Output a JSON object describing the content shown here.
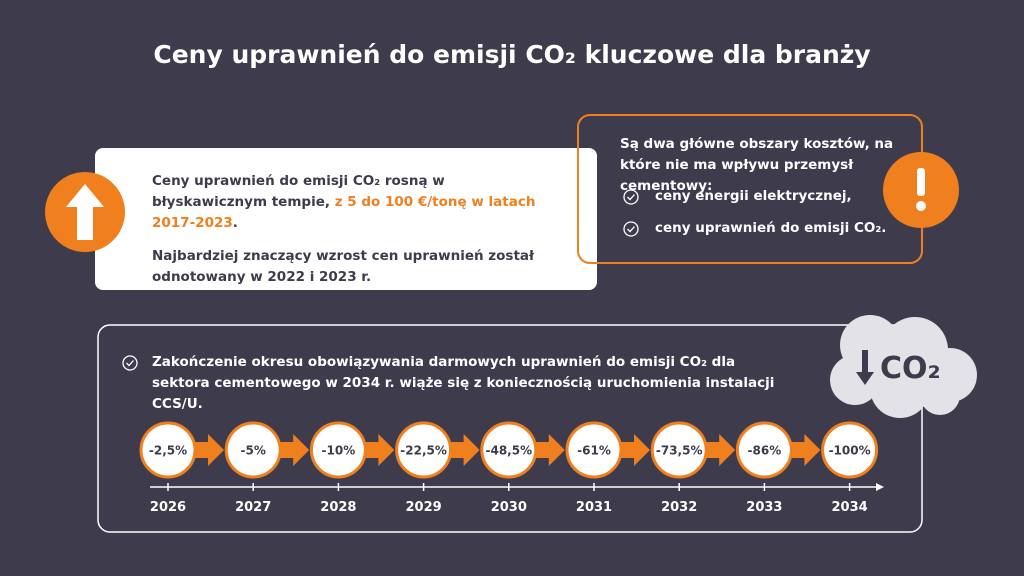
{
  "title": "Ceny uprawnień do emisji CO₂ kluczowe dla branży",
  "left_box": {
    "paragraph_1": {
      "before": "Ceny uprawnień do emisji CO₂ rosną w błyskawicznym tempie, ",
      "highlight": "z 5 do 100 €/tonę w latach 2017-2023",
      "after": "."
    },
    "paragraph_2": "Najbardziej znaczący wzrost cen uprawnień został odnotowany w 2022 i 2023 r."
  },
  "right_box": {
    "intro": "Są dwa główne obszary kosztów, na które nie ma wpływu przemysł cementowy:",
    "items": [
      "ceny energii elektrycznej,",
      "ceny uprawnień do emisji CO₂."
    ]
  },
  "bottom_box": {
    "note": "Zakończenie okresu obowiązywania darmowych uprawnień do emisji CO₂ dla sektora cementowego w 2034 r. wiąże się z koniecznością uruchomienia instalacji CCS/U.",
    "cloud_label": "CO₂",
    "timeline": [
      {
        "label": "-2,5%",
        "year": "2026"
      },
      {
        "label": "-5%",
        "year": "2027"
      },
      {
        "label": "-10%",
        "year": "2028"
      },
      {
        "label": "-22,5%",
        "year": "2029"
      },
      {
        "label": "-48,5%",
        "year": "2030"
      },
      {
        "label": "-61%",
        "year": "2031"
      },
      {
        "label": "-73,5%",
        "year": "2032"
      },
      {
        "label": "-86%",
        "year": "2033"
      },
      {
        "label": "-100%",
        "year": "2034"
      }
    ]
  }
}
